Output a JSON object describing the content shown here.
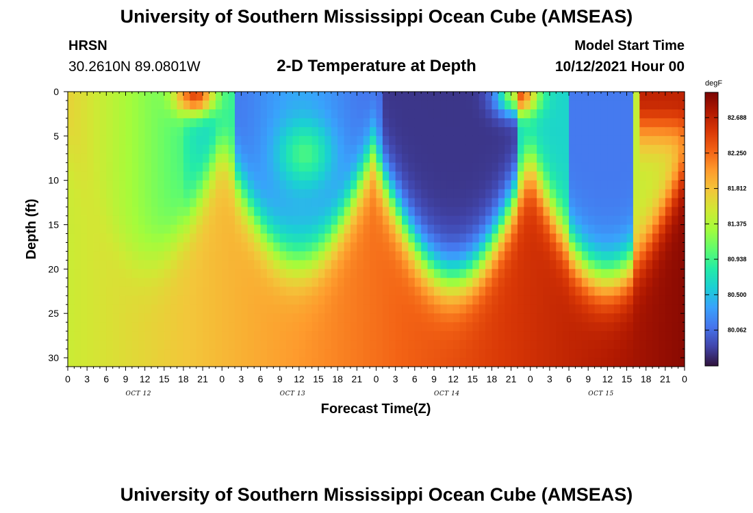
{
  "header": {
    "title": "University of Southern Mississippi Ocean Cube (AMSEAS)",
    "station": "HRSN",
    "coordinates": "30.2610N  89.0801W",
    "subtitle": "2-D Temperature at Depth",
    "start_label": "Model Start Time",
    "start_value": "10/12/2021 Hour 00"
  },
  "footer": {
    "title": "University of Southern Mississippi Ocean Cube (AMSEAS)"
  },
  "chart_data": {
    "type": "heatmap",
    "title": "2-D Temperature at Depth",
    "xlabel": "Forecast Time(Z)",
    "ylabel": "Depth (ft)",
    "x_hours_range": [
      0,
      96
    ],
    "x_tick_labels": [
      "0",
      "3",
      "6",
      "9",
      "12",
      "15",
      "18",
      "21",
      "0",
      "3",
      "6",
      "9",
      "12",
      "15",
      "18",
      "21",
      "0",
      "3",
      "6",
      "9",
      "12",
      "15",
      "18",
      "21",
      "0",
      "3",
      "6",
      "9",
      "12",
      "15",
      "18",
      "21",
      "0"
    ],
    "day_labels": [
      "OCT 12",
      "OCT 13",
      "OCT 14",
      "OCT 15"
    ],
    "day_label_hours": [
      11,
      35,
      59,
      83
    ],
    "ylim": [
      0,
      31
    ],
    "y_ticks": [
      0,
      5,
      10,
      15,
      20,
      25,
      30
    ],
    "colorbar": {
      "unit": "degF",
      "range": [
        79.62,
        83.0
      ],
      "ticks": [
        "82.688",
        "82.250",
        "81.812",
        "81.375",
        "80.938",
        "80.500",
        "80.062"
      ]
    },
    "colors": {
      "scale": [
        "#30123b",
        "#4145ab",
        "#4675ed",
        "#39a2fc",
        "#1bcfd4",
        "#24eca6",
        "#61fc6c",
        "#a4fc3b",
        "#d1e834",
        "#f3c63a",
        "#fe9b2d",
        "#f36315",
        "#d93806",
        "#b11901",
        "#7a0403"
      ]
    }
  }
}
